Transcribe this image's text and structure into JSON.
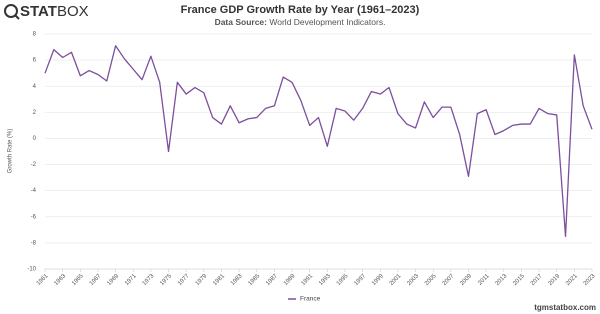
{
  "brand": [
    "STAT",
    "BOX"
  ],
  "source_label": "Data Source:",
  "source": "World Development Indicators.",
  "footer": "tgmstatbox.com",
  "chart_data": {
    "type": "line",
    "title": "France GDP Growth Rate by Year (1961–2023)",
    "y_label": "Growth Rate (%)",
    "x": [
      1961,
      1962,
      1963,
      1964,
      1965,
      1966,
      1967,
      1968,
      1969,
      1970,
      1971,
      1972,
      1973,
      1974,
      1975,
      1976,
      1977,
      1978,
      1979,
      1980,
      1981,
      1982,
      1983,
      1984,
      1985,
      1986,
      1987,
      1988,
      1989,
      1990,
      1991,
      1992,
      1993,
      1994,
      1995,
      1996,
      1997,
      1998,
      1999,
      2000,
      2001,
      2002,
      2003,
      2004,
      2005,
      2006,
      2007,
      2008,
      2009,
      2010,
      2011,
      2012,
      2013,
      2014,
      2015,
      2016,
      2017,
      2018,
      2019,
      2020,
      2021,
      2022,
      2023
    ],
    "series": [
      {
        "name": "France",
        "color": "#7b4f9d",
        "values": [
          5.0,
          6.8,
          6.2,
          6.6,
          4.8,
          5.2,
          4.9,
          4.4,
          7.1,
          6.1,
          5.3,
          4.5,
          6.3,
          4.3,
          -1.0,
          4.3,
          3.4,
          3.9,
          3.5,
          1.6,
          1.1,
          2.5,
          1.2,
          1.5,
          1.6,
          2.3,
          2.5,
          4.7,
          4.3,
          2.9,
          1.0,
          1.6,
          -0.6,
          2.3,
          2.1,
          1.4,
          2.3,
          3.6,
          3.4,
          3.9,
          1.9,
          1.1,
          0.8,
          2.8,
          1.6,
          2.4,
          2.4,
          0.3,
          -2.9,
          1.9,
          2.2,
          0.3,
          0.6,
          1.0,
          1.1,
          1.1,
          2.3,
          1.9,
          1.8,
          -7.5,
          6.4,
          2.5,
          0.7
        ]
      }
    ],
    "xlim": [
      1961,
      2023
    ],
    "xticks": [
      1961,
      1963,
      1965,
      1967,
      1969,
      1971,
      1973,
      1975,
      1977,
      1979,
      1981,
      1983,
      1985,
      1987,
      1989,
      1991,
      1993,
      1995,
      1997,
      1999,
      2001,
      2003,
      2005,
      2007,
      2009,
      2011,
      2013,
      2015,
      2017,
      2019,
      2021,
      2023
    ],
    "ylim": [
      -10,
      8
    ],
    "yticks": [
      -10,
      -8,
      -6,
      -4,
      -2,
      0,
      2,
      4,
      6,
      8
    ],
    "grid": true,
    "legend": "bottom"
  }
}
